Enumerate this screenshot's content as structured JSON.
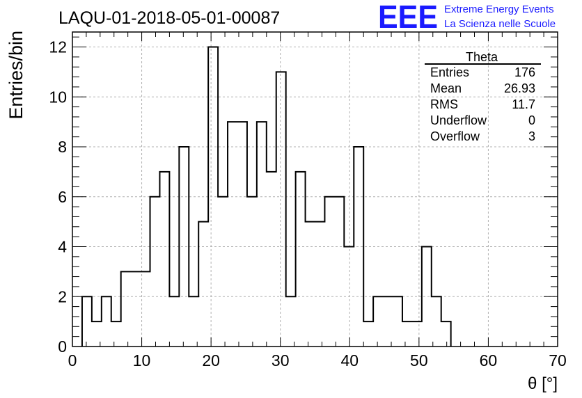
{
  "chart_data": {
    "type": "bar",
    "title": "LAQU-01-2018-05-01-00087",
    "xlabel": "θ [°]",
    "ylabel": "Entries/bin",
    "xlim": [
      0,
      70
    ],
    "ylim": [
      0,
      12.6
    ],
    "x_ticks": [
      "0",
      "10",
      "20",
      "30",
      "40",
      "50",
      "60",
      "70"
    ],
    "y_ticks": [
      "0",
      "2",
      "4",
      "6",
      "8",
      "10",
      "12"
    ],
    "grid": true,
    "bin_edges_start": 1.4,
    "bin_width": 1.4,
    "values": [
      2,
      1,
      2,
      1,
      3,
      3,
      3,
      6,
      7,
      2,
      8,
      2,
      5,
      12,
      6,
      9,
      9,
      6,
      9,
      7,
      11,
      2,
      7,
      5,
      5,
      6,
      6,
      4,
      8,
      1,
      2,
      2,
      2,
      1,
      1,
      4,
      2,
      1
    ],
    "color": "#000000"
  },
  "stats_box": {
    "title": "Theta",
    "rows": [
      {
        "label": "Entries",
        "value": "176"
      },
      {
        "label": "Mean",
        "value": "26.93"
      },
      {
        "label": "RMS",
        "value": "11.7"
      },
      {
        "label": "Underflow",
        "value": "0"
      },
      {
        "label": "Overflow",
        "value": "3"
      }
    ]
  },
  "logo": {
    "mark": "EEE",
    "line1": "Extreme Energy Events",
    "line2": "La Scienza nelle Scuole",
    "color": "#1a1aff"
  }
}
